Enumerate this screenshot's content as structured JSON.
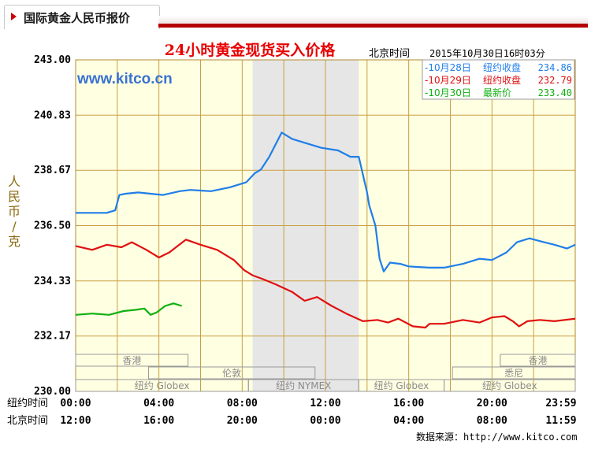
{
  "tab": {
    "title": "国际黄金人民币报价"
  },
  "chart_data": {
    "type": "line",
    "title": "24小时黄金现货买入价格",
    "subtitle_label": "北京时间",
    "subtitle_time": "2015年10月30日16时03分",
    "watermark": "www.kitco.cn",
    "ylabel": "人民币/克",
    "ylim": [
      230.0,
      243.0
    ],
    "yticks": [
      "243.00",
      "240.83",
      "238.67",
      "236.50",
      "234.33",
      "232.17",
      "230.00"
    ],
    "xlim": [
      0,
      24
    ],
    "x_row1_label": "纽约时间",
    "x_row2_label": "北京时间",
    "x_row1_ticks": [
      "00:00",
      "04:00",
      "08:00",
      "12:00",
      "16:00",
      "20:00",
      "23:59"
    ],
    "x_row2_ticks": [
      "12:00",
      "16:00",
      "20:00",
      "00:00",
      "04:00",
      "08:00",
      "11:59"
    ],
    "shaded_hours": [
      8.5,
      13.6
    ],
    "grid": true,
    "legend_position": "top-right",
    "legend": [
      {
        "date": "-10月28日",
        "label": "纽约收盘",
        "value": "234.86",
        "color": "#1f7ee8"
      },
      {
        "date": "-10月29日",
        "label": "纽约收盘",
        "value": "232.79",
        "color": "#e01010"
      },
      {
        "date": "-10月30日",
        "label": "最新价",
        "value": "233.40",
        "color": "#10b010"
      }
    ],
    "sessions_row1": [
      {
        "label": "香港",
        "start": 0,
        "end": 5.4
      },
      {
        "label": "香港",
        "start": 20.4,
        "end": 24
      }
    ],
    "sessions_row2": [
      {
        "label": "伦敦",
        "start": 3.5,
        "end": 11.5
      },
      {
        "label": "悉尼",
        "start": 18.1,
        "end": 24
      }
    ],
    "sessions_row3": [
      {
        "label": "纽约 Globex",
        "start": 0,
        "end": 8.3
      },
      {
        "label": "纽约 NYMEX",
        "start": 8.3,
        "end": 13.6
      },
      {
        "label": "纽约 Globex",
        "start": 13.6,
        "end": 17.7
      },
      {
        "label": "纽约 Globex",
        "start": 17.7,
        "end": 24
      }
    ],
    "series": [
      {
        "color": "#1f7ee8",
        "x": [
          0,
          1.5,
          1.9,
          2.1,
          2.4,
          3.0,
          3.6,
          4.2,
          5.0,
          5.5,
          6.5,
          7.4,
          8.2,
          8.6,
          8.9,
          9.3,
          9.9,
          10.4,
          11.0,
          11.8,
          12.6,
          13.2,
          13.6,
          14.0,
          14.1,
          14.4,
          14.6,
          14.8,
          15.1,
          15.6,
          16.0,
          16.4,
          17.0,
          17.7,
          18.6,
          19.4,
          20.0,
          20.7,
          21.2,
          21.8,
          22.5,
          23.0,
          23.6,
          24.0
        ],
        "y": [
          237.0,
          237.0,
          237.1,
          237.7,
          237.75,
          237.8,
          237.75,
          237.7,
          237.85,
          237.9,
          237.85,
          238.0,
          238.2,
          238.55,
          238.7,
          239.2,
          240.15,
          239.9,
          239.75,
          239.55,
          239.45,
          239.2,
          239.2,
          237.8,
          237.3,
          236.5,
          235.2,
          234.7,
          235.05,
          235.0,
          234.9,
          234.88,
          234.85,
          234.85,
          235.0,
          235.2,
          235.15,
          235.45,
          235.85,
          236.0,
          235.85,
          235.75,
          235.6,
          235.75
        ]
      },
      {
        "color": "#e01010",
        "x": [
          0,
          0.8,
          1.5,
          2.2,
          2.7,
          3.4,
          4.0,
          4.5,
          5.3,
          6.0,
          6.8,
          7.6,
          8.1,
          8.5,
          9.0,
          9.6,
          10.4,
          11.0,
          11.6,
          12.3,
          13.0,
          13.8,
          14.5,
          15.0,
          15.5,
          16.2,
          16.8,
          17.0,
          17.7,
          18.6,
          19.4,
          20.0,
          20.6,
          21.0,
          21.3,
          21.7,
          22.3,
          23.0,
          24.0
        ],
        "y": [
          235.7,
          235.55,
          235.75,
          235.65,
          235.85,
          235.55,
          235.25,
          235.45,
          235.95,
          235.75,
          235.55,
          235.15,
          234.75,
          234.55,
          234.4,
          234.2,
          233.9,
          233.55,
          233.7,
          233.35,
          233.05,
          232.75,
          232.8,
          232.7,
          232.85,
          232.55,
          232.5,
          232.65,
          232.65,
          232.8,
          232.7,
          232.9,
          232.95,
          232.75,
          232.55,
          232.75,
          232.8,
          232.75,
          232.85
        ]
      },
      {
        "color": "#10b010",
        "x": [
          0,
          0.8,
          1.6,
          2.3,
          2.9,
          3.3,
          3.6,
          3.9,
          4.3,
          4.7,
          5.1
        ],
        "y": [
          233.0,
          233.05,
          233.0,
          233.15,
          233.2,
          233.25,
          233.0,
          233.1,
          233.35,
          233.45,
          233.35
        ]
      }
    ]
  },
  "source": {
    "label": "数据来源：",
    "url": "http://www.kitco.com"
  }
}
